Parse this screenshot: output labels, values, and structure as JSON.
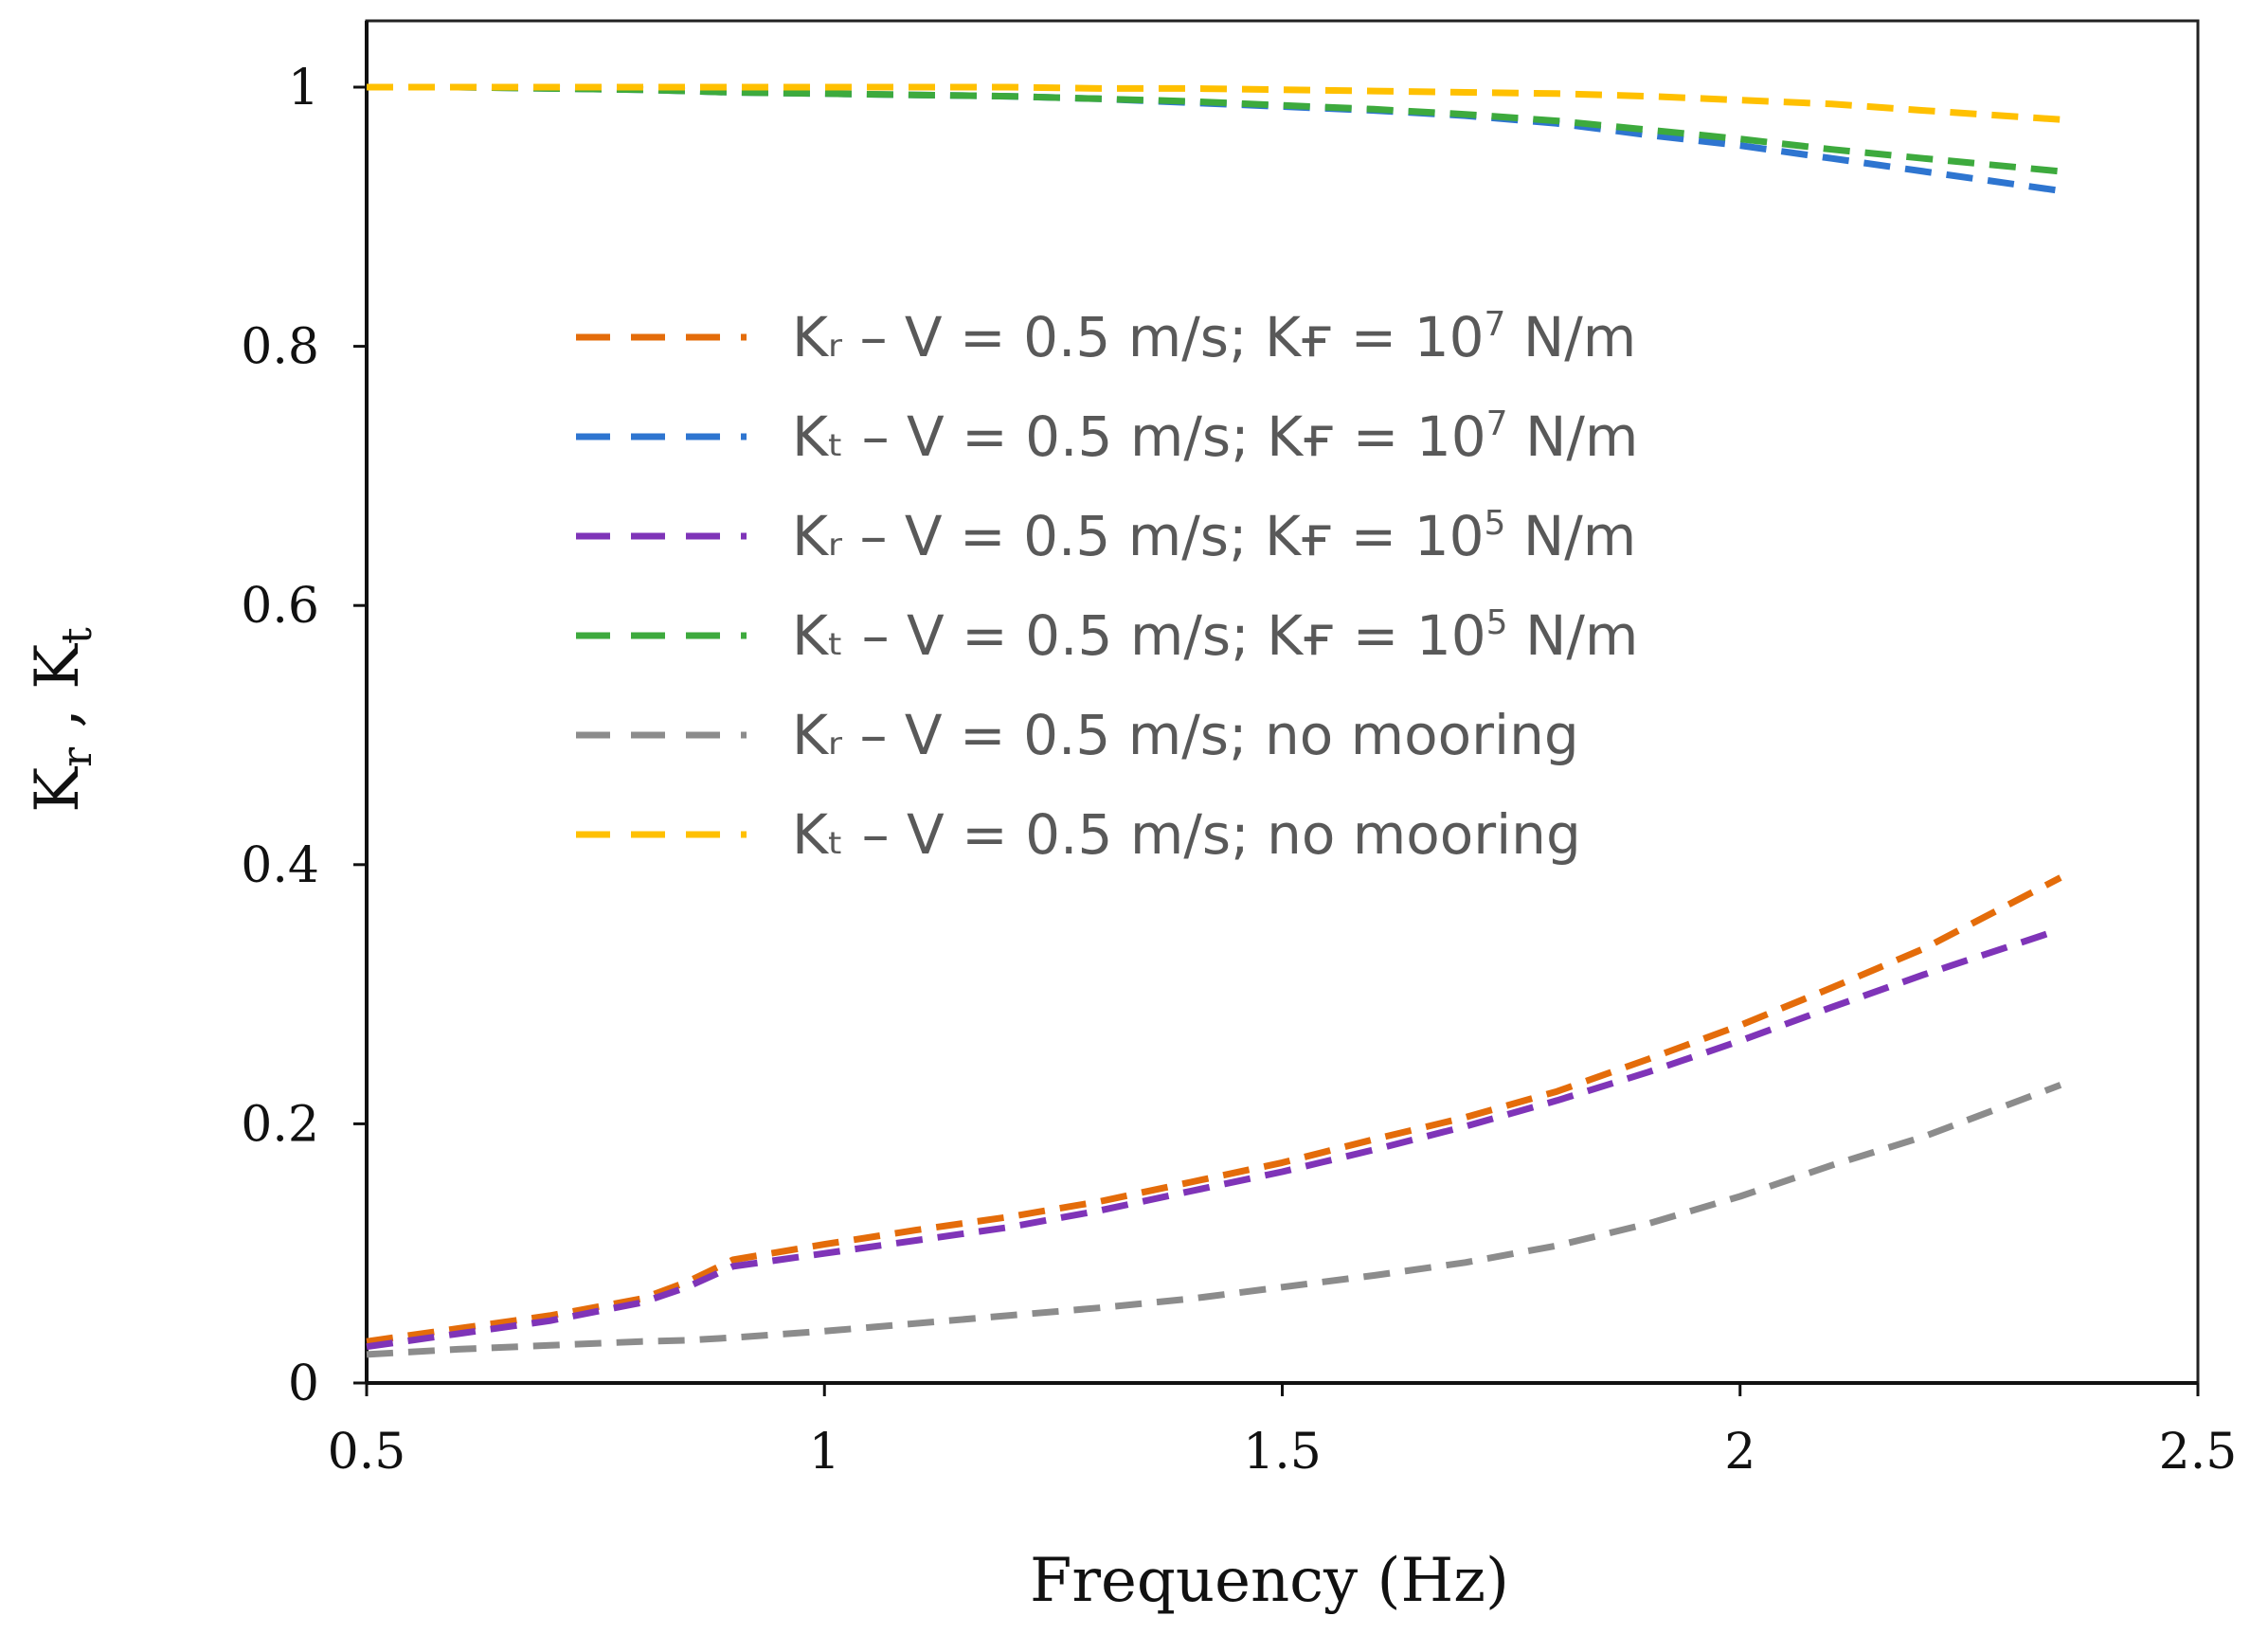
{
  "chart_data": {
    "type": "line",
    "title": "",
    "xlabel": "Frequency (Hz)",
    "ylabel": "Kr , Kt",
    "xlim": [
      0.5,
      2.5
    ],
    "ylim": [
      0,
      1.05
    ],
    "xticks": [
      "0.5",
      "1",
      "1.5",
      "2",
      "2.5"
    ],
    "xtick_values": [
      0.5,
      1,
      1.5,
      2,
      2.5
    ],
    "yticks": [
      "0",
      "0.2",
      "0.4",
      "0.6",
      "0.8",
      "1"
    ],
    "ytick_values": [
      0,
      0.2,
      0.4,
      0.6,
      0.8,
      1
    ],
    "grid": false,
    "legend_position": "upper-middle",
    "x": [
      0.5,
      0.6,
      0.7,
      0.8,
      0.85,
      0.9,
      1.0,
      1.1,
      1.2,
      1.3,
      1.4,
      1.5,
      1.6,
      1.7,
      1.8,
      1.9,
      2.0,
      2.1,
      2.2,
      2.35
    ],
    "series": [
      {
        "name": "Kr – V = 0.5 m/s; Kf = 10^7 N/m",
        "legend": {
          "main": "Kᵣ – V = 0.5 m/s; Kғ = 10",
          "exp": "7",
          "tail": " N/m"
        },
        "color": "#E46C0A",
        "values": [
          0.032,
          0.042,
          0.052,
          0.065,
          0.078,
          0.095,
          0.107,
          0.118,
          0.128,
          0.14,
          0.155,
          0.17,
          0.188,
          0.205,
          0.225,
          0.25,
          0.276,
          0.305,
          0.335,
          0.39
        ]
      },
      {
        "name": "Kt – V = 0.5 m/s; Kf = 10^7 N/m",
        "legend": {
          "main": "Kₜ – V = 0.5 m/s; Kғ = 10",
          "exp": "7",
          "tail": "  N/m"
        },
        "color": "#2E75D0",
        "values": [
          1.0,
          1.0,
          0.999,
          0.998,
          0.997,
          0.996,
          0.995,
          0.994,
          0.993,
          0.991,
          0.988,
          0.985,
          0.982,
          0.978,
          0.972,
          0.963,
          0.955,
          0.945,
          0.935,
          0.92
        ]
      },
      {
        "name": "Kr – V = 0.5 m/s; Kf = 10^5 N/m",
        "legend": {
          "main": "Kᵣ – V = 0.5 m/s; Kғ = 10",
          "exp": "5",
          "tail": " N/m"
        },
        "color": "#7F34B8",
        "values": [
          0.028,
          0.038,
          0.048,
          0.062,
          0.074,
          0.09,
          0.1,
          0.11,
          0.12,
          0.133,
          0.148,
          0.163,
          0.18,
          0.198,
          0.218,
          0.24,
          0.264,
          0.29,
          0.315,
          0.35
        ]
      },
      {
        "name": "Kt – V = 0.5 m/s; Kf = 10^5 N/m",
        "legend": {
          "main": "Kₜ – V = 0.5 m/s; Kғ = 10",
          "exp": "5",
          "tail": " N/m"
        },
        "color": "#3DAA3D",
        "values": [
          1.0,
          1.0,
          0.999,
          0.998,
          0.997,
          0.996,
          0.995,
          0.994,
          0.993,
          0.991,
          0.989,
          0.986,
          0.983,
          0.979,
          0.974,
          0.967,
          0.96,
          0.952,
          0.945,
          0.935
        ]
      },
      {
        "name": "Kr – V = 0.5 m/s; no mooring",
        "legend": {
          "main": "Kᵣ – V = 0.5 m/s; no mooring",
          "exp": "",
          "tail": ""
        },
        "color": "#8C8C8C",
        "values": [
          0.022,
          0.026,
          0.029,
          0.032,
          0.033,
          0.035,
          0.04,
          0.046,
          0.052,
          0.058,
          0.065,
          0.074,
          0.083,
          0.093,
          0.106,
          0.123,
          0.144,
          0.168,
          0.19,
          0.23
        ]
      },
      {
        "name": "Kt – V = 0.5 m/s; no mooring",
        "legend": {
          "main": "Kₜ – V = 0.5 m/s; no mooring",
          "exp": "",
          "tail": ""
        },
        "color": "#FFC000",
        "values": [
          1.0,
          1.0,
          1.0,
          1.0,
          1.0,
          1.0,
          1.0,
          1.0,
          1.0,
          0.999,
          0.999,
          0.998,
          0.997,
          0.996,
          0.995,
          0.993,
          0.99,
          0.987,
          0.982,
          0.975
        ]
      }
    ]
  }
}
